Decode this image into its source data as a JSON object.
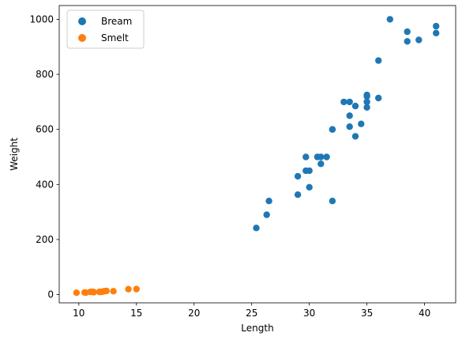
{
  "chart_data": {
    "type": "scatter",
    "title": "",
    "xlabel": "Length",
    "ylabel": "Weight",
    "xlim": [
      8.3,
      42.7
    ],
    "ylim": [
      -30,
      1050
    ],
    "x_ticks": [
      10,
      15,
      20,
      25,
      30,
      35,
      40
    ],
    "y_ticks": [
      0,
      200,
      400,
      600,
      800,
      1000
    ],
    "grid": false,
    "legend": "upper-left",
    "series": [
      {
        "name": "Bream",
        "color": "#1f77b4",
        "points": [
          [
            25.4,
            242
          ],
          [
            26.3,
            290
          ],
          [
            26.5,
            340
          ],
          [
            29.0,
            363
          ],
          [
            29.0,
            430
          ],
          [
            29.7,
            450
          ],
          [
            29.7,
            500
          ],
          [
            30.0,
            390
          ],
          [
            30.0,
            450
          ],
          [
            30.7,
            500
          ],
          [
            31.0,
            475
          ],
          [
            31.0,
            500
          ],
          [
            31.5,
            500
          ],
          [
            32.0,
            340
          ],
          [
            32.0,
            600
          ],
          [
            32.0,
            600
          ],
          [
            33.0,
            700
          ],
          [
            33.5,
            700
          ],
          [
            33.5,
            610
          ],
          [
            33.5,
            650
          ],
          [
            34.0,
            575
          ],
          [
            34.0,
            685
          ],
          [
            34.5,
            620
          ],
          [
            35.0,
            680
          ],
          [
            35.0,
            700
          ],
          [
            35.0,
            725
          ],
          [
            35.0,
            720
          ],
          [
            36.0,
            714
          ],
          [
            36.0,
            850
          ],
          [
            37.0,
            1000
          ],
          [
            38.5,
            920
          ],
          [
            38.5,
            955
          ],
          [
            39.5,
            925
          ],
          [
            41.0,
            975
          ],
          [
            41.0,
            950
          ]
        ]
      },
      {
        "name": "Smelt",
        "color": "#ff7f0e",
        "points": [
          [
            9.8,
            6.7
          ],
          [
            10.5,
            7.5
          ],
          [
            10.6,
            7.0
          ],
          [
            11.0,
            9.7
          ],
          [
            11.2,
            9.8
          ],
          [
            11.3,
            8.7
          ],
          [
            11.8,
            10.0
          ],
          [
            11.8,
            9.9
          ],
          [
            12.0,
            9.8
          ],
          [
            12.2,
            12.2
          ],
          [
            12.4,
            13.4
          ],
          [
            13.0,
            12.2
          ],
          [
            14.3,
            19.7
          ],
          [
            15.0,
            19.9
          ]
        ]
      }
    ]
  }
}
